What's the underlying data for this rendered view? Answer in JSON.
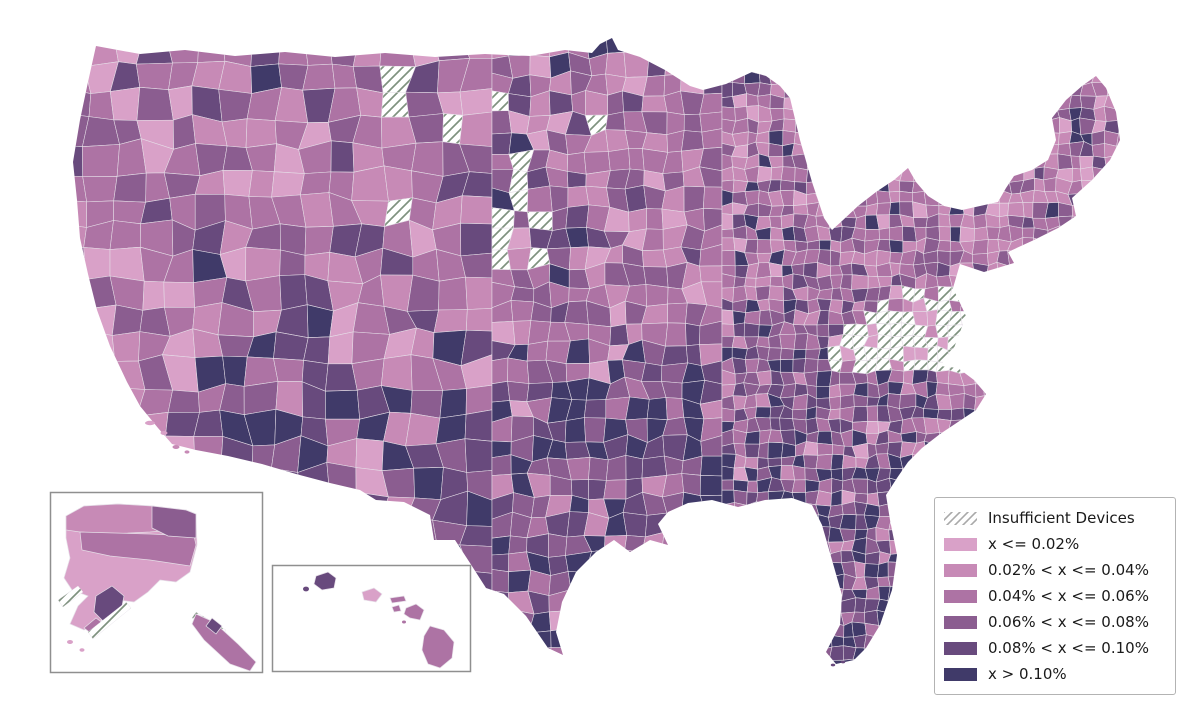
{
  "chart_data": {
    "type": "choropleth",
    "title": "",
    "region": "United States counties (contiguous US with Alaska and Hawaii insets)",
    "metric": "x (percentage of devices)",
    "bins": [
      {
        "label": "x <= 0.02%",
        "color": "#d9a1c8",
        "range": [
          0,
          0.02
        ]
      },
      {
        "label": "0.02% < x <= 0.04%",
        "color": "#c78ab6",
        "range": [
          0.02,
          0.04
        ]
      },
      {
        "label": "0.04% < x <= 0.06%",
        "color": "#ad73a4",
        "range": [
          0.04,
          0.06
        ]
      },
      {
        "label": "0.06% < x <= 0.08%",
        "color": "#8b5d90",
        "range": [
          0.06,
          0.08
        ]
      },
      {
        "label": "0.08% < x <= 0.10%",
        "color": "#684a7d",
        "range": [
          0.08,
          0.1
        ]
      },
      {
        "label": "x > 0.10%",
        "color": "#403a69",
        "range": [
          0.1,
          null
        ]
      }
    ],
    "no_data": {
      "label": "Insufficient Devices",
      "style": "hatched",
      "hatch_color": "#7f927f",
      "background": "#ffffff"
    },
    "legend_position": "lower right",
    "insets": [
      "Alaska",
      "Hawaii"
    ],
    "pattern_notes": "Darkest counties concentrated in Texas / Oklahoma / Louisiana, the Deep South and Florida; lightest along the California coast; medium purples across the Mountain West, Midwest and Northeast; Virginia almost entirely hatched as Insufficient Devices; scattered hatched counties across the northern Great Plains and central Nebraska/Kansas"
  },
  "colors": {
    "legend_border": "#b3b3b3",
    "legend_hatch": "#a9a9a9",
    "county_border": "#e6dfe8",
    "inset_border": "#8f8f8f",
    "text": "#1a1a1a"
  }
}
